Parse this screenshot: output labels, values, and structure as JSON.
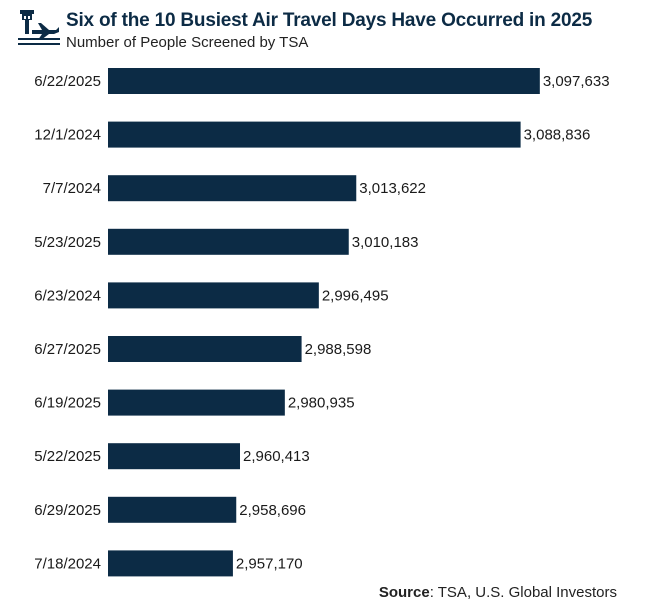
{
  "header": {
    "logo_icon": "airport-control-tower-plane-icon",
    "title": "Six of the 10 Busiest Air Travel Days Have Occurred in 2025",
    "subtitle": "Number of People Screened by TSA"
  },
  "source": {
    "label": "Source",
    "text": ": TSA, U.S. Global Investors"
  },
  "colors": {
    "bar": "#0c2b45",
    "title": "#0c2b45"
  },
  "chart_data": {
    "type": "bar",
    "orientation": "horizontal",
    "title": "Six of the 10 Busiest Air Travel Days Have Occurred in 2025",
    "subtitle": "Number of People Screened by TSA",
    "xlabel": "",
    "ylabel": "",
    "grid": false,
    "categories": [
      "6/22/2025",
      "12/1/2024",
      "7/7/2024",
      "5/23/2025",
      "6/23/2024",
      "6/27/2025",
      "6/19/2025",
      "5/22/2025",
      "6/29/2025",
      "7/18/2024"
    ],
    "values": [
      3097633,
      3088836,
      3013622,
      3010183,
      2996495,
      2988598,
      2980935,
      2960413,
      2958696,
      2957170
    ],
    "value_labels": [
      "3,097,633",
      "3,088,836",
      "3,013,622",
      "3,010,183",
      "2,996,495",
      "2,988,598",
      "2,980,935",
      "2,960,413",
      "2,958,696",
      "2,957,170"
    ]
  }
}
